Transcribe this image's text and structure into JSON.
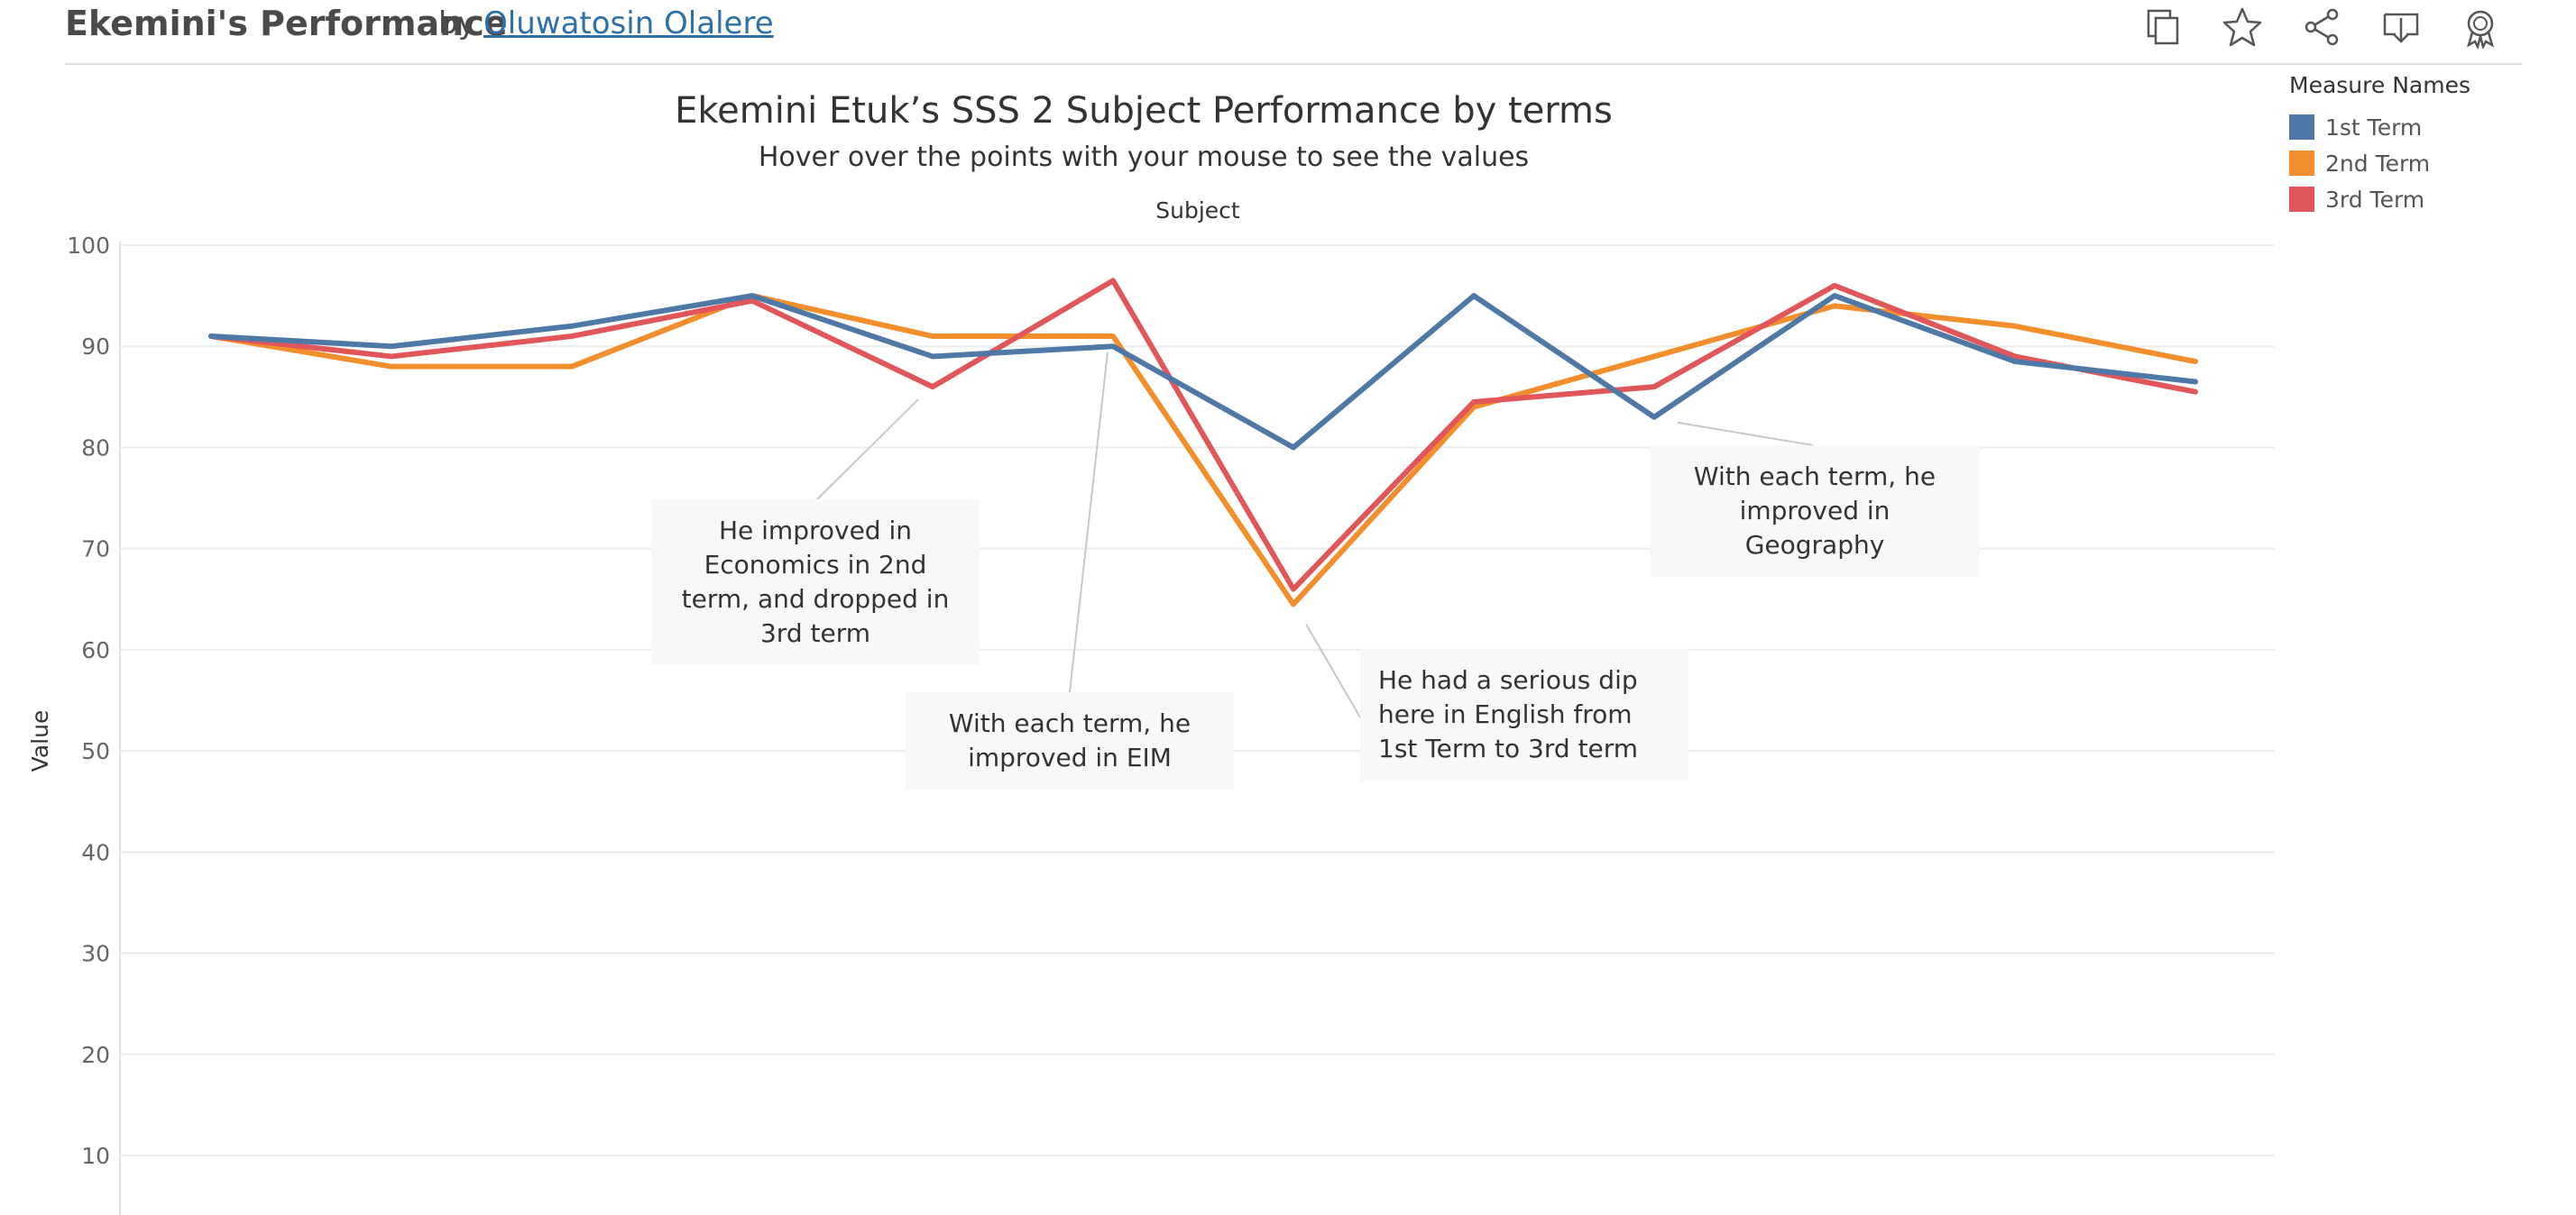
{
  "header": {
    "title": "Ekemini's Performance",
    "by": "by",
    "author": "Oluwatosin Olalere"
  },
  "toolbar": {
    "icons": [
      "copy-icon",
      "star-icon",
      "share-icon",
      "download-icon",
      "badge-icon"
    ]
  },
  "legend": {
    "title": "Measure Names",
    "items": [
      {
        "label": "1st Term",
        "color": "#4e79a7"
      },
      {
        "label": "2nd Term",
        "color": "#f28e2b"
      },
      {
        "label": "3rd Term",
        "color": "#e15759"
      }
    ]
  },
  "annotations": [
    {
      "text": "He improved in Economics in 2nd term, and dropped in 3rd term"
    },
    {
      "text": "With each term, he improved in EIM"
    },
    {
      "text": "He had a serious dip here in English from 1st Term to 3rd term"
    },
    {
      "text": "With each term, he improved in Geography"
    }
  ],
  "chart_data": {
    "type": "line",
    "title": "Ekemini Etuk’s SSS 2 Subject Performance by terms",
    "subtitle": "Hover over the points with your mouse to see the values",
    "xlabel": "Subject",
    "ylabel": "Value",
    "ylim": [
      0,
      100
    ],
    "yticks": [
      10,
      20,
      30,
      40,
      50,
      60,
      70,
      80,
      90,
      100
    ],
    "grid": true,
    "legend_position": "top-right",
    "series": [
      {
        "name": "1st Term",
        "color": "#4e79a7",
        "values": [
          91,
          90,
          92,
          95,
          89,
          90,
          80,
          95,
          83,
          95,
          88.5,
          86.5
        ]
      },
      {
        "name": "2nd Term",
        "color": "#f28e2b",
        "values": [
          91,
          88,
          88,
          95,
          91,
          91,
          64.5,
          84,
          89,
          94,
          92,
          88.5
        ]
      },
      {
        "name": "3rd Term",
        "color": "#e15759",
        "values": [
          91,
          89,
          91,
          94.5,
          86,
          96.5,
          66,
          84.5,
          86,
          96,
          89,
          85.5
        ]
      }
    ]
  }
}
